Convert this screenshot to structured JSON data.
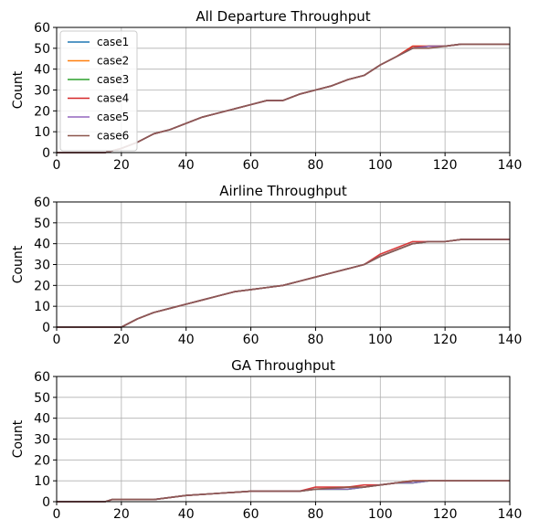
{
  "chart_data": [
    {
      "type": "line",
      "title": "All Departure Throughput",
      "xlabel": "",
      "ylabel": "Count",
      "xlim": [
        0,
        140
      ],
      "ylim": [
        0,
        60
      ],
      "xticks": [
        0,
        20,
        40,
        60,
        80,
        100,
        120,
        140
      ],
      "yticks": [
        0,
        10,
        20,
        30,
        40,
        50,
        60
      ],
      "grid": true,
      "legend_position": "top-left",
      "series": [
        {
          "name": "case1",
          "color": "#1f77b4",
          "x": [
            0,
            15,
            20,
            25,
            30,
            35,
            40,
            45,
            50,
            55,
            60,
            65,
            70,
            75,
            80,
            85,
            90,
            95,
            100,
            105,
            110,
            115,
            120,
            125,
            130,
            135,
            140
          ],
          "y": [
            0,
            0,
            2,
            5,
            9,
            11,
            14,
            17,
            19,
            21,
            23,
            25,
            25,
            28,
            30,
            32,
            35,
            37,
            42,
            46,
            50,
            51,
            51,
            52,
            52,
            52,
            52
          ]
        },
        {
          "name": "case2",
          "color": "#ff7f0e",
          "x": [
            0,
            15,
            20,
            25,
            30,
            35,
            40,
            45,
            50,
            55,
            60,
            65,
            70,
            75,
            80,
            85,
            90,
            95,
            100,
            105,
            110,
            115,
            120,
            125,
            130,
            135,
            140
          ],
          "y": [
            0,
            0,
            2,
            5,
            9,
            11,
            14,
            17,
            19,
            21,
            23,
            25,
            25,
            28,
            30,
            32,
            35,
            37,
            42,
            46,
            51,
            51,
            51,
            52,
            52,
            52,
            52
          ]
        },
        {
          "name": "case3",
          "color": "#2ca02c",
          "x": [
            0,
            15,
            20,
            25,
            30,
            35,
            40,
            45,
            50,
            55,
            60,
            65,
            70,
            75,
            80,
            85,
            90,
            95,
            100,
            105,
            110,
            115,
            120,
            125,
            130,
            135,
            140
          ],
          "y": [
            0,
            0,
            2,
            5,
            9,
            11,
            14,
            17,
            19,
            21,
            23,
            25,
            25,
            28,
            30,
            32,
            35,
            37,
            42,
            46,
            50,
            51,
            51,
            52,
            52,
            52,
            52
          ]
        },
        {
          "name": "case4",
          "color": "#d62728",
          "x": [
            0,
            15,
            20,
            25,
            30,
            35,
            40,
            45,
            50,
            55,
            60,
            65,
            70,
            75,
            80,
            85,
            90,
            95,
            100,
            105,
            110,
            115,
            120,
            125,
            130,
            135,
            140
          ],
          "y": [
            0,
            0,
            2,
            5,
            9,
            11,
            14,
            17,
            19,
            21,
            23,
            25,
            25,
            28,
            30,
            32,
            35,
            37,
            42,
            46,
            51,
            51,
            51,
            52,
            52,
            52,
            52
          ]
        },
        {
          "name": "case5",
          "color": "#9467bd",
          "x": [
            0,
            15,
            20,
            25,
            30,
            35,
            40,
            45,
            50,
            55,
            60,
            65,
            70,
            75,
            80,
            85,
            90,
            95,
            100,
            105,
            110,
            115,
            120,
            125,
            130,
            135,
            140
          ],
          "y": [
            0,
            0,
            2,
            5,
            9,
            11,
            14,
            17,
            19,
            21,
            23,
            25,
            25,
            28,
            30,
            32,
            35,
            37,
            42,
            46,
            50,
            51,
            51,
            52,
            52,
            52,
            52
          ]
        },
        {
          "name": "case6",
          "color": "#8c564b",
          "x": [
            0,
            15,
            20,
            25,
            30,
            35,
            40,
            45,
            50,
            55,
            60,
            65,
            70,
            75,
            80,
            85,
            90,
            95,
            100,
            105,
            110,
            115,
            120,
            125,
            130,
            135,
            140
          ],
          "y": [
            0,
            0,
            2,
            5,
            9,
            11,
            14,
            17,
            19,
            21,
            23,
            25,
            25,
            28,
            30,
            32,
            35,
            37,
            42,
            46,
            50,
            50,
            51,
            52,
            52,
            52,
            52
          ]
        }
      ]
    },
    {
      "type": "line",
      "title": "Airline Throughput",
      "xlabel": "",
      "ylabel": "Count",
      "xlim": [
        0,
        140
      ],
      "ylim": [
        0,
        60
      ],
      "xticks": [
        0,
        20,
        40,
        60,
        80,
        100,
        120,
        140
      ],
      "yticks": [
        0,
        10,
        20,
        30,
        40,
        50,
        60
      ],
      "grid": true,
      "series": [
        {
          "color": "#1f77b4",
          "x": [
            0,
            20,
            25,
            30,
            35,
            40,
            45,
            50,
            55,
            60,
            65,
            70,
            75,
            80,
            85,
            90,
            95,
            100,
            105,
            110,
            115,
            120,
            125,
            130,
            135,
            140
          ],
          "y": [
            0,
            0,
            4,
            7,
            9,
            11,
            13,
            15,
            17,
            18,
            19,
            20,
            22,
            24,
            26,
            28,
            30,
            34,
            37,
            40,
            41,
            41,
            42,
            42,
            42,
            42
          ]
        },
        {
          "color": "#ff7f0e",
          "x": [
            0,
            20,
            25,
            30,
            35,
            40,
            45,
            50,
            55,
            60,
            65,
            70,
            75,
            80,
            85,
            90,
            95,
            100,
            105,
            110,
            115,
            120,
            125,
            130,
            135,
            140
          ],
          "y": [
            0,
            0,
            4,
            7,
            9,
            11,
            13,
            15,
            17,
            18,
            19,
            20,
            22,
            24,
            26,
            28,
            30,
            34,
            37,
            40,
            41,
            41,
            42,
            42,
            42,
            42
          ]
        },
        {
          "color": "#2ca02c",
          "x": [
            0,
            20,
            25,
            30,
            35,
            40,
            45,
            50,
            55,
            60,
            65,
            70,
            75,
            80,
            85,
            90,
            95,
            100,
            105,
            110,
            115,
            120,
            125,
            130,
            135,
            140
          ],
          "y": [
            0,
            0,
            4,
            7,
            9,
            11,
            13,
            15,
            17,
            18,
            19,
            20,
            22,
            24,
            26,
            28,
            30,
            34,
            37,
            40,
            41,
            41,
            42,
            42,
            42,
            42
          ]
        },
        {
          "color": "#d62728",
          "x": [
            0,
            20,
            25,
            30,
            35,
            40,
            45,
            50,
            55,
            60,
            65,
            70,
            75,
            80,
            85,
            90,
            95,
            100,
            105,
            110,
            115,
            120,
            125,
            130,
            135,
            140
          ],
          "y": [
            0,
            0,
            4,
            7,
            9,
            11,
            13,
            15,
            17,
            18,
            19,
            20,
            22,
            24,
            26,
            28,
            30,
            35,
            38,
            41,
            41,
            41,
            42,
            42,
            42,
            42
          ]
        },
        {
          "color": "#9467bd",
          "x": [
            0,
            20,
            25,
            30,
            35,
            40,
            45,
            50,
            55,
            60,
            65,
            70,
            75,
            80,
            85,
            90,
            95,
            100,
            105,
            110,
            115,
            120,
            125,
            130,
            135,
            140
          ],
          "y": [
            0,
            0,
            4,
            7,
            9,
            11,
            13,
            15,
            17,
            18,
            19,
            20,
            22,
            24,
            26,
            28,
            30,
            34,
            37,
            40,
            41,
            41,
            42,
            42,
            42,
            42
          ]
        },
        {
          "color": "#8c564b",
          "x": [
            0,
            20,
            25,
            30,
            35,
            40,
            45,
            50,
            55,
            60,
            65,
            70,
            75,
            80,
            85,
            90,
            95,
            100,
            105,
            110,
            115,
            120,
            125,
            130,
            135,
            140
          ],
          "y": [
            0,
            0,
            4,
            7,
            9,
            11,
            13,
            15,
            17,
            18,
            19,
            20,
            22,
            24,
            26,
            28,
            30,
            34,
            37,
            40,
            41,
            41,
            42,
            42,
            42,
            42
          ]
        }
      ]
    },
    {
      "type": "line",
      "title": "GA Throughput",
      "xlabel": "",
      "ylabel": "Count",
      "xlim": [
        0,
        140
      ],
      "ylim": [
        0,
        60
      ],
      "xticks": [
        0,
        20,
        40,
        60,
        80,
        100,
        120,
        140
      ],
      "yticks": [
        0,
        10,
        20,
        30,
        40,
        50,
        60
      ],
      "grid": true,
      "series": [
        {
          "color": "#1f77b4",
          "x": [
            0,
            15,
            17,
            30,
            40,
            50,
            60,
            70,
            75,
            80,
            90,
            95,
            100,
            105,
            110,
            115,
            120,
            140
          ],
          "y": [
            0,
            0,
            1,
            1,
            3,
            4,
            5,
            5,
            5,
            6,
            6,
            7,
            8,
            9,
            9,
            10,
            10,
            10
          ]
        },
        {
          "color": "#ff7f0e",
          "x": [
            0,
            15,
            17,
            30,
            40,
            50,
            60,
            70,
            75,
            80,
            90,
            95,
            100,
            105,
            110,
            115,
            120,
            140
          ],
          "y": [
            0,
            0,
            1,
            1,
            3,
            4,
            5,
            5,
            5,
            6,
            7,
            7,
            8,
            9,
            10,
            10,
            10,
            10
          ]
        },
        {
          "color": "#2ca02c",
          "x": [
            0,
            15,
            17,
            30,
            40,
            50,
            60,
            70,
            75,
            80,
            90,
            95,
            100,
            105,
            110,
            115,
            120,
            140
          ],
          "y": [
            0,
            0,
            1,
            1,
            3,
            4,
            5,
            5,
            5,
            6,
            6,
            7,
            8,
            9,
            9,
            10,
            10,
            10
          ]
        },
        {
          "color": "#d62728",
          "x": [
            0,
            15,
            17,
            30,
            40,
            50,
            60,
            70,
            75,
            80,
            90,
            95,
            100,
            105,
            110,
            115,
            120,
            140
          ],
          "y": [
            0,
            0,
            1,
            1,
            3,
            4,
            5,
            5,
            5,
            7,
            7,
            8,
            8,
            9,
            10,
            10,
            10,
            10
          ]
        },
        {
          "color": "#9467bd",
          "x": [
            0,
            15,
            17,
            30,
            40,
            50,
            60,
            70,
            75,
            80,
            90,
            95,
            100,
            105,
            110,
            115,
            120,
            140
          ],
          "y": [
            0,
            0,
            1,
            1,
            3,
            4,
            5,
            5,
            5,
            6,
            6,
            7,
            8,
            9,
            9,
            10,
            10,
            10
          ]
        },
        {
          "color": "#8c564b",
          "x": [
            0,
            15,
            17,
            30,
            40,
            50,
            60,
            70,
            75,
            80,
            90,
            95,
            100,
            105,
            110,
            115,
            120,
            140
          ],
          "y": [
            0,
            0,
            1,
            1,
            3,
            4,
            5,
            5,
            5,
            6,
            7,
            7,
            8,
            9,
            10,
            10,
            10,
            10
          ]
        }
      ]
    }
  ]
}
